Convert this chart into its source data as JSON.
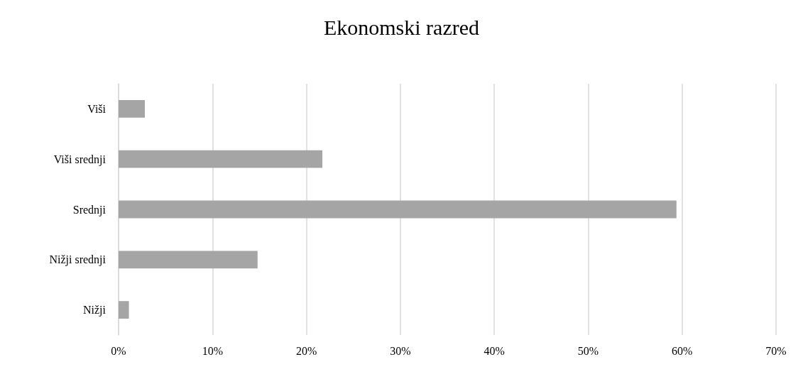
{
  "chart_data": {
    "type": "bar",
    "orientation": "horizontal",
    "title": "Ekonomski razred",
    "categories": [
      "Viši",
      "Viši srednji",
      "Srednji",
      "Nižji srednji",
      "Nižji"
    ],
    "values": [
      2.8,
      21.7,
      59.4,
      14.8,
      1.1
    ],
    "color": "#a5a5a5",
    "xlim": [
      0,
      70
    ],
    "xticks": [
      {
        "value": 0,
        "label": "0%"
      },
      {
        "value": 10,
        "label": "10%"
      },
      {
        "value": 20,
        "label": "20%"
      },
      {
        "value": 30,
        "label": "30%"
      },
      {
        "value": 40,
        "label": "40%"
      },
      {
        "value": 50,
        "label": "50%"
      },
      {
        "value": 60,
        "label": "60%"
      },
      {
        "value": 70,
        "label": "70%"
      }
    ],
    "grid": "x"
  }
}
